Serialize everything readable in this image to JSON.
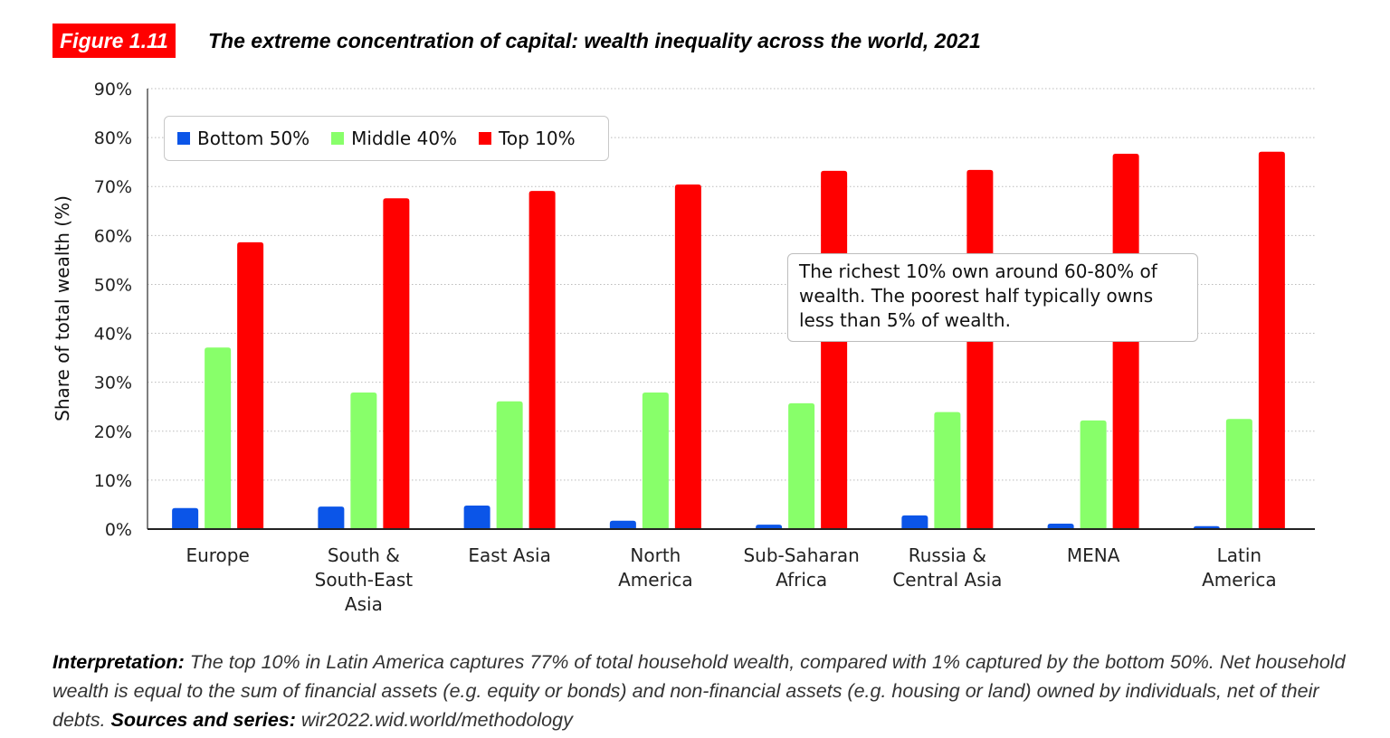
{
  "figure": {
    "label": "Figure 1.11",
    "title": "The extreme concentration of capital: wealth inequality across the world, 2021"
  },
  "colors": {
    "accent": "#ff0000",
    "bottom50": "#0b55e8",
    "middle40": "#88ff6a",
    "top10": "#ff0000"
  },
  "annotation": {
    "text": "The richest 10% own around 60-80% of wealth. The poorest half typically owns less than 5% of wealth."
  },
  "footer": {
    "interpretation_label": "Interpretation:",
    "interpretation_text": " The top 10% in Latin America captures 77% of total household wealth, compared with 1% captured by the bottom 50%. Net household wealth is equal to the sum of financial assets (e.g. equity or bonds) and non-financial assets (e.g. housing or land) owned by individuals, net of their debts. ",
    "sources_label": "Sources and series:",
    "sources_text": " wir2022.wid.world/methodology"
  },
  "chart_data": {
    "type": "bar",
    "title": "The extreme concentration of capital: wealth inequality across the world, 2021",
    "xlabel": "",
    "ylabel": "Share of total wealth (%)",
    "ylim": [
      0,
      90
    ],
    "yticks": [
      "0%",
      "10%",
      "20%",
      "30%",
      "40%",
      "50%",
      "60%",
      "70%",
      "80%",
      "90%"
    ],
    "grid": true,
    "legend_position": "top-left",
    "categories": [
      [
        "Europe"
      ],
      [
        "South &",
        "South-East",
        "Asia"
      ],
      [
        "East Asia"
      ],
      [
        "North",
        "America"
      ],
      [
        "Sub-Saharan",
        "Africa"
      ],
      [
        "Russia &",
        "Central Asia"
      ],
      [
        "MENA"
      ],
      [
        "Latin",
        "America"
      ]
    ],
    "series": [
      {
        "name": "Bottom 50%",
        "key": "bottom50",
        "values": [
          4.3,
          4.6,
          4.8,
          1.7,
          0.9,
          2.8,
          1.1,
          0.6
        ]
      },
      {
        "name": "Middle 40%",
        "key": "middle40",
        "values": [
          37.1,
          27.9,
          26.1,
          27.9,
          25.7,
          23.9,
          22.2,
          22.5
        ]
      },
      {
        "name": "Top 10%",
        "key": "top10",
        "values": [
          58.6,
          67.6,
          69.1,
          70.4,
          73.2,
          73.4,
          76.7,
          77.1
        ]
      }
    ]
  }
}
